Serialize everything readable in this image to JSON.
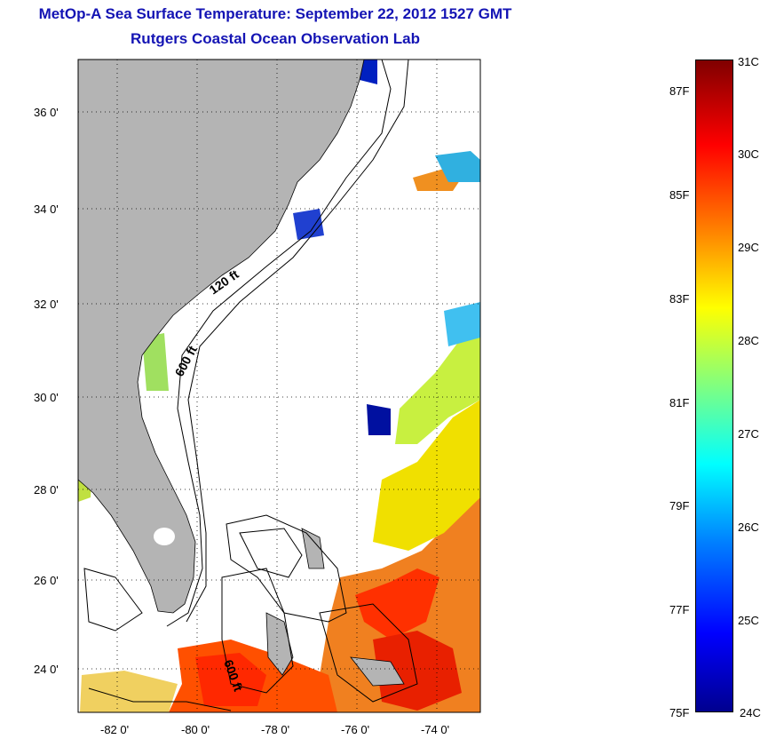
{
  "title": {
    "line1": "MetOp-A Sea Surface Temperature:  September 22, 2012 1527 GMT",
    "line2": "Rutgers Coastal Ocean Observation Lab"
  },
  "map": {
    "lat_ticks": [
      "36 0'",
      "34 0'",
      "32 0'",
      "30 0'",
      "28 0'",
      "26 0'",
      "24 0'"
    ],
    "lon_ticks": [
      "-82 0'",
      "-80 0'",
      "-78 0'",
      "-76 0'",
      "-74 0'"
    ],
    "contour_labels": [
      "120 ft",
      "600 ft",
      "600 ft"
    ],
    "land_color": "#b4b4b4",
    "ocean_no_data_color": "#ffffff"
  },
  "colorbar": {
    "celsius_labels": [
      "31C",
      "30C",
      "29C",
      "28C",
      "27C",
      "26C",
      "25C",
      "24C"
    ],
    "fahrenheit_labels": [
      "87F",
      "85F",
      "83F",
      "81F",
      "79F",
      "77F",
      "75F"
    ],
    "celsius_range": [
      24,
      31
    ],
    "palette": [
      "#00008f",
      "#0000ff",
      "#0080ff",
      "#00ffff",
      "#80ff80",
      "#ffff00",
      "#ff8000",
      "#ff0000",
      "#800000"
    ]
  }
}
